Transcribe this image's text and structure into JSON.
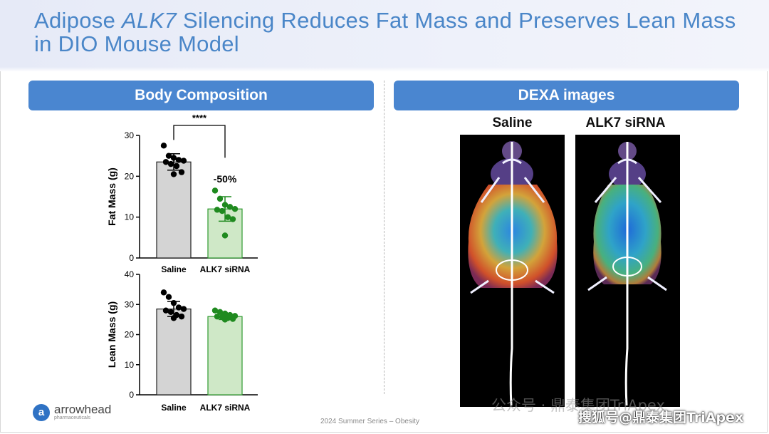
{
  "slide": {
    "title_part1": "Adipose ",
    "title_italic": "ALK7",
    "title_part2": " Silencing Reduces Fat Mass and Preserves Lean Mass in DIO Mouse Model",
    "left_header": "Body Composition",
    "right_header": "DEXA images",
    "dexa_labels": [
      "Saline",
      "ALK7 siRNA"
    ],
    "footer": "2024 Summer Series – Obesity",
    "logo_name": "arrowhead",
    "logo_sub": "pharmaceuticals",
    "logo_mark": "a",
    "watermark_1": "公众号 · 鼎泰集团TriApex",
    "watermark_2": "搜狐号@鼎泰集团TriApex"
  },
  "colors": {
    "title": "#4a86c8",
    "header_bg": "#4a86d0",
    "saline_bar": "#d4d4d4",
    "saline_dot": "#000000",
    "sirna_bar": "#cfe8c7",
    "sirna_dot": "#1f8a1f",
    "sirna_bar_edge": "#2e9a2e"
  },
  "chart_data": [
    {
      "type": "bar",
      "ylabel": "Fat Mass (g)",
      "categories": [
        "Saline",
        "ALK7 siRNA"
      ],
      "values": [
        23.5,
        12
      ],
      "errors": [
        2,
        3
      ],
      "yticks": [
        0,
        10,
        20,
        30
      ],
      "ylim": [
        0,
        30
      ],
      "points": [
        [
          27.5,
          25,
          24.5,
          24,
          23.8,
          23.5,
          23,
          22.5,
          21,
          20.5
        ],
        [
          16.5,
          14.5,
          13,
          12.5,
          12,
          11.8,
          11.5,
          10,
          9.5,
          5.5
        ]
      ],
      "significance": "****",
      "annotation": "-50%"
    },
    {
      "type": "bar",
      "ylabel": "Lean Mass (g)",
      "categories": [
        "Saline",
        "ALK7 siRNA"
      ],
      "values": [
        28.5,
        26
      ],
      "errors": [
        2.5,
        1
      ],
      "yticks": [
        0,
        10,
        20,
        30,
        40
      ],
      "ylim": [
        0,
        40
      ],
      "points": [
        [
          34,
          32.5,
          30.5,
          29,
          28.5,
          28,
          27.5,
          26.5,
          26,
          25.5
        ],
        [
          28,
          27.5,
          27,
          26.5,
          26.2,
          26,
          25.8,
          25.5,
          25.2,
          25
        ]
      ]
    }
  ]
}
